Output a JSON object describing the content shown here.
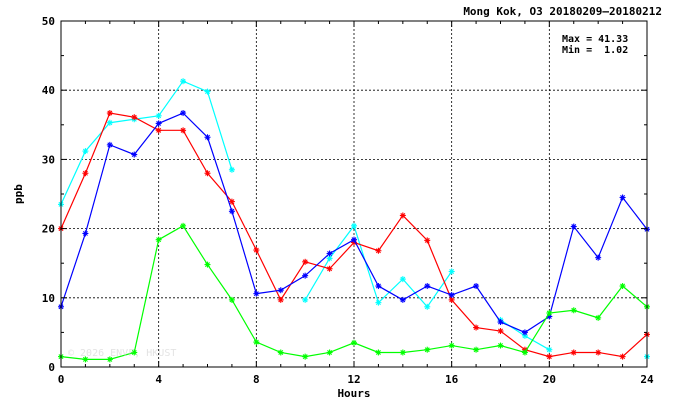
{
  "chart_data": {
    "type": "line",
    "title": "Mong Kok, O3 20180209–20180212",
    "xlabel": "Hours",
    "ylabel": "ppb",
    "xlim": [
      0,
      24
    ],
    "ylim": [
      0,
      50
    ],
    "xticks": [
      0,
      4,
      8,
      12,
      16,
      20,
      24
    ],
    "yticks": [
      0,
      10,
      20,
      30,
      40,
      50
    ],
    "grid": true,
    "stats": {
      "max_text": "Max = 41.33",
      "min_text": "Min =  1.02"
    },
    "watermark": "© 2026 ENVF, HKUST",
    "x": [
      0,
      1,
      2,
      3,
      4,
      5,
      6,
      7,
      8,
      9,
      10,
      11,
      12,
      13,
      14,
      15,
      16,
      17,
      18,
      19,
      20,
      21,
      22,
      23,
      24
    ],
    "series": [
      {
        "color": "#00ffff",
        "values": [
          23.5,
          31.2,
          35.3,
          35.8,
          36.3,
          41.3,
          39.8,
          28.5,
          null,
          null,
          9.7,
          15.7,
          20.4,
          9.3,
          12.7,
          8.7,
          13.8,
          null,
          6.8,
          4.5,
          2.5,
          null,
          null,
          null,
          1.5
        ]
      },
      {
        "color": "#ff0000",
        "values": [
          20.0,
          28.0,
          36.7,
          36.1,
          34.2,
          34.2,
          28.0,
          23.9,
          16.9,
          9.7,
          15.2,
          14.2,
          18.0,
          16.8,
          21.9,
          18.3,
          9.7,
          5.7,
          5.2,
          2.5,
          1.5,
          2.1,
          2.1,
          1.5,
          4.7
        ]
      },
      {
        "color": "#0000ff",
        "values": [
          8.7,
          19.3,
          32.1,
          30.7,
          35.2,
          36.7,
          33.2,
          22.5,
          10.6,
          11.1,
          13.2,
          16.4,
          18.4,
          11.7,
          9.7,
          11.7,
          10.4,
          11.7,
          6.5,
          5.0,
          7.3,
          20.3,
          15.8,
          24.5,
          19.9
        ]
      },
      {
        "color": "#00ff00",
        "values": [
          1.5,
          1.1,
          1.1,
          2.1,
          18.4,
          20.4,
          14.8,
          9.7,
          3.6,
          2.1,
          1.5,
          2.1,
          3.5,
          2.1,
          2.1,
          2.5,
          3.1,
          2.5,
          3.1,
          2.1,
          7.8,
          8.2,
          7.1,
          11.7,
          8.7
        ]
      }
    ]
  }
}
